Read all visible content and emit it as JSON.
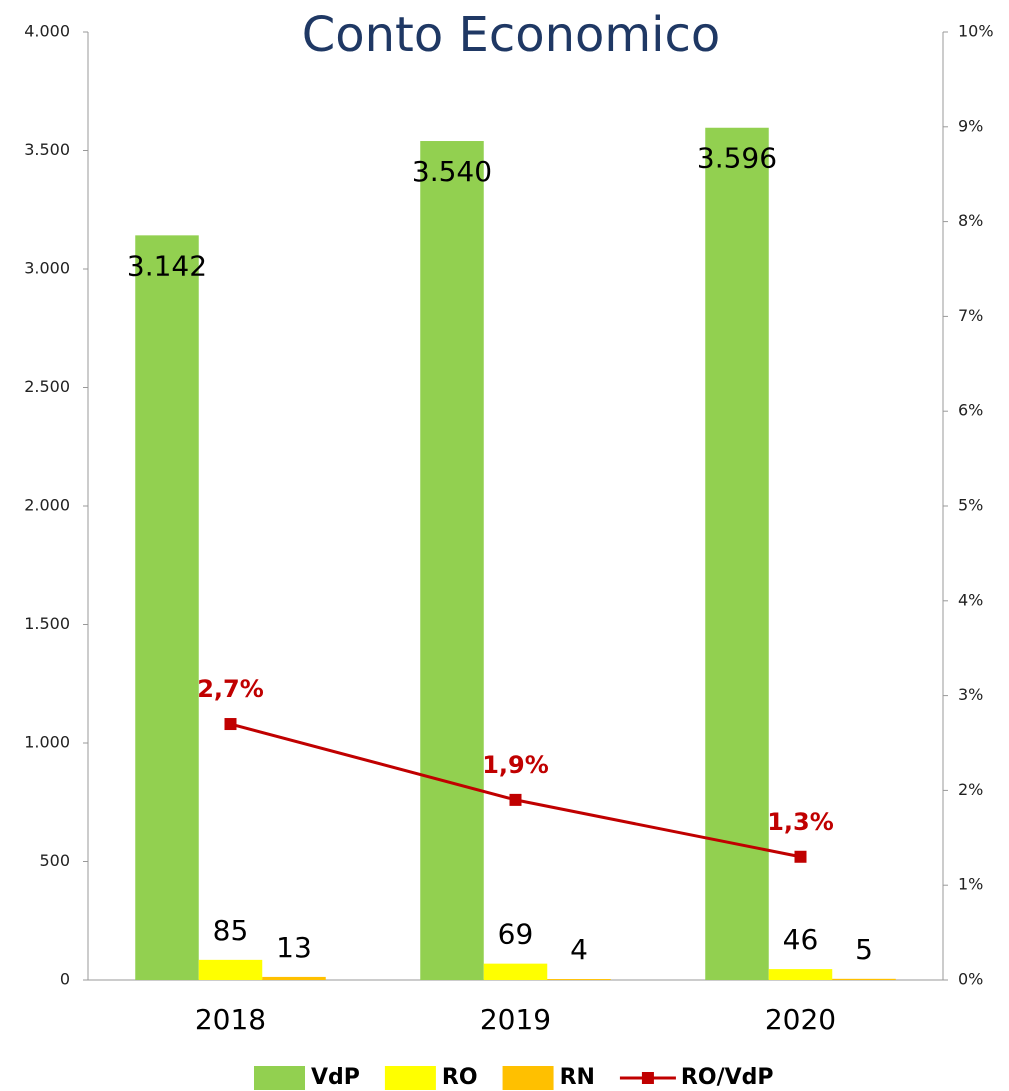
{
  "chart_data": {
    "type": "bar",
    "title": "Conto Economico",
    "categories": [
      "2018",
      "2019",
      "2020"
    ],
    "series": [
      {
        "name": "VdP",
        "color": "#92d050",
        "values": [
          3142,
          3540,
          3596
        ],
        "value_labels": [
          "3.142",
          "3.540",
          "3.596"
        ]
      },
      {
        "name": "RO",
        "color": "#ffff00",
        "values": [
          85,
          69,
          46
        ]
      },
      {
        "name": "RN",
        "color": "#ffc000",
        "values": [
          13,
          4,
          5
        ]
      },
      {
        "name": "RO/VdP",
        "type": "line",
        "axis": "y2",
        "color": "#c00000",
        "values": [
          2.7,
          1.9,
          1.3
        ],
        "value_labels": [
          "2,7%",
          "1,9%",
          "1,3%"
        ]
      }
    ],
    "ylim": [
      0,
      4000
    ],
    "yticks": [
      0,
      500,
      {
        "value": 1000,
        "label": "1.000"
      },
      {
        "value": 1500,
        "label": "1.500"
      },
      {
        "value": 2000,
        "label": "2.000"
      },
      {
        "value": 2500,
        "label": "2.500"
      },
      {
        "value": 3000,
        "label": "3.000"
      },
      {
        "value": 3500,
        "label": "3.500"
      },
      {
        "value": 4000,
        "label": "4.000"
      }
    ],
    "y2lim": [
      0,
      10
    ],
    "y2ticks": [
      {
        "value": 0,
        "label": "0%"
      },
      {
        "value": 1,
        "label": "1%"
      },
      {
        "value": 2,
        "label": "2%"
      },
      {
        "value": 3,
        "label": "3%"
      },
      {
        "value": 4,
        "label": "4%"
      },
      {
        "value": 5,
        "label": "5%"
      },
      {
        "value": 6,
        "label": "6%"
      },
      {
        "value": 7,
        "label": "7%"
      },
      {
        "value": 8,
        "label": "8%"
      },
      {
        "value": 9,
        "label": "9%"
      },
      {
        "value": 10,
        "label": "10%"
      }
    ],
    "legend": "bottom",
    "grid": false
  }
}
